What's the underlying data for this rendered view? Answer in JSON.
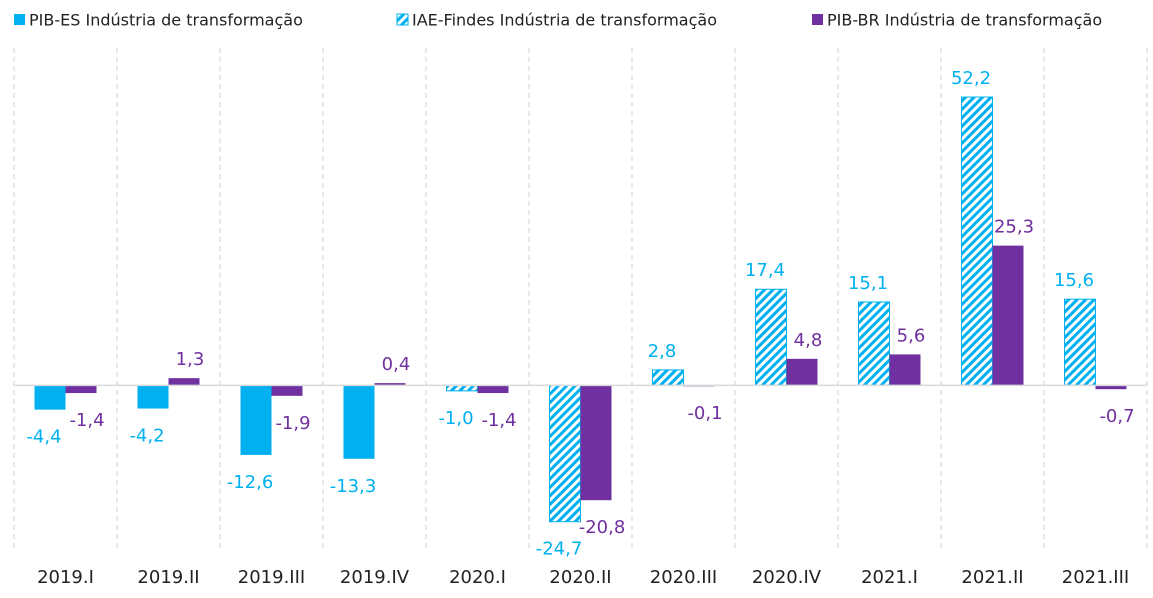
{
  "chart_data": {
    "type": "bar",
    "categories": [
      "2019.I",
      "2019.II",
      "2019.III",
      "2019.IV",
      "2020.I",
      "2020.II",
      "2020.III",
      "2020.IV",
      "2021.I",
      "2021.II",
      "2021.III"
    ],
    "series": [
      {
        "name": "PIB-ES Indústria de transformação",
        "color": "#00b0f0",
        "hatch": false,
        "values": [
          -4.4,
          -4.2,
          -12.6,
          -13.3,
          null,
          null,
          null,
          null,
          null,
          null,
          null
        ],
        "value_labels": [
          "-4,4",
          "-4,2",
          "-12,6",
          "-13,3",
          null,
          null,
          null,
          null,
          null,
          null,
          null
        ]
      },
      {
        "name": "IAE-Findes Indústria de transformação",
        "color": "#00b0f0",
        "hatch": true,
        "values": [
          null,
          null,
          null,
          null,
          -1.0,
          -24.7,
          2.8,
          17.4,
          15.1,
          52.2,
          15.6
        ],
        "value_labels": [
          null,
          null,
          null,
          null,
          "-1,0",
          "-24,7",
          "2,8",
          "17,4",
          "15,1",
          "52,2",
          "15,6"
        ]
      },
      {
        "name": "PIB-BR Indústria de transformação",
        "color": "#7030a0",
        "hatch": false,
        "values": [
          -1.4,
          1.3,
          -1.9,
          0.4,
          -1.4,
          -20.8,
          -0.1,
          4.8,
          5.6,
          25.3,
          -0.7
        ],
        "value_labels": [
          "-1,4",
          "1,3",
          "-1,9",
          "0,4",
          "-1,4",
          "-20,8",
          "-0,1",
          "4,8",
          "5,6",
          "25,3",
          "-0,7"
        ]
      }
    ],
    "ylim": [
      -30,
      60
    ],
    "legend": "top"
  }
}
